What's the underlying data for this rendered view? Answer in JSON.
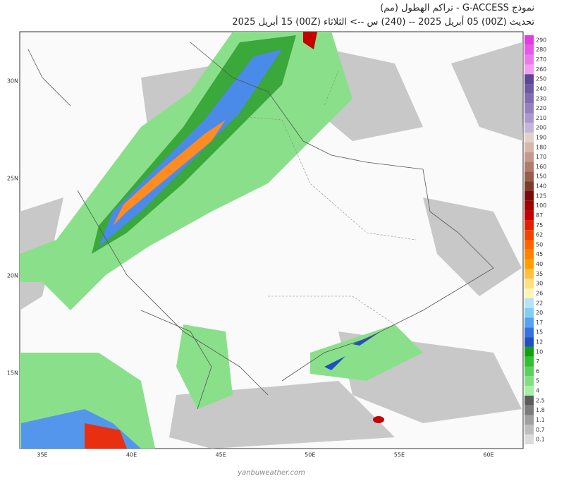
{
  "header": {
    "title": "نموذج G-ACCESS  - تراكم الهطول (مم)",
    "subtitle": "تحديث (00Z) 05 أبريل 2025 -- (240) س --> الثلاثاء (00Z) 15 أبريل 2025"
  },
  "map": {
    "lat_labels": [
      "30N",
      "25N",
      "20N",
      "15N"
    ],
    "lon_labels": [
      "35E",
      "40E",
      "45E",
      "50E",
      "55E",
      "60E"
    ]
  },
  "legend": [
    {
      "label": 290,
      "color": "#e03ce0"
    },
    {
      "label": 280,
      "color": "#e658e6"
    },
    {
      "label": 270,
      "color": "#ec78ec"
    },
    {
      "label": 260,
      "color": "#f29cf2"
    },
    {
      "label": 250,
      "color": "#5e4694"
    },
    {
      "label": 240,
      "color": "#6e58a2"
    },
    {
      "label": 230,
      "color": "#806cb0"
    },
    {
      "label": 220,
      "color": "#9482be"
    },
    {
      "label": 210,
      "color": "#a89aca"
    },
    {
      "label": 200,
      "color": "#c2b6da"
    },
    {
      "label": 190,
      "color": "#e2d2c8"
    },
    {
      "label": 180,
      "color": "#d6b6a8"
    },
    {
      "label": 170,
      "color": "#c49a8c"
    },
    {
      "label": 160,
      "color": "#ae7c6c"
    },
    {
      "label": 150,
      "color": "#965c4c"
    },
    {
      "label": 140,
      "color": "#7a3c2c"
    },
    {
      "label": 125,
      "color": "#7a0a0a"
    },
    {
      "label": 100,
      "color": "#a00000"
    },
    {
      "label": 87,
      "color": "#c40000"
    },
    {
      "label": 75,
      "color": "#e02000"
    },
    {
      "label": 62,
      "color": "#f04400"
    },
    {
      "label": 50,
      "color": "#ff6400"
    },
    {
      "label": 45,
      "color": "#ff8200"
    },
    {
      "label": 40,
      "color": "#ffa000"
    },
    {
      "label": 35,
      "color": "#ffc040"
    },
    {
      "label": 30,
      "color": "#ffe080"
    },
    {
      "label": 26,
      "color": "#fff4b8"
    },
    {
      "label": 22,
      "color": "#b4e4f4"
    },
    {
      "label": 20,
      "color": "#84ccf2"
    },
    {
      "label": 17,
      "color": "#54a4f0"
    },
    {
      "label": 15,
      "color": "#3474e0"
    },
    {
      "label": 12,
      "color": "#2050c0"
    },
    {
      "label": 10,
      "color": "#10a010"
    },
    {
      "label": 7,
      "color": "#30c030"
    },
    {
      "label": 6,
      "color": "#5cd05c"
    },
    {
      "label": 5,
      "color": "#80e080"
    },
    {
      "label": 4,
      "color": "#a4f0a4"
    },
    {
      "label": 2.5,
      "color": "#5c5c5c"
    },
    {
      "label": 1.8,
      "color": "#7c7c7c"
    },
    {
      "label": 1.1,
      "color": "#a0a0a0"
    },
    {
      "label": 0.7,
      "color": "#bebebe"
    },
    {
      "label": 0.1,
      "color": "#dcdcdc"
    }
  ],
  "footer": {
    "site": "yanbuweather.com"
  }
}
